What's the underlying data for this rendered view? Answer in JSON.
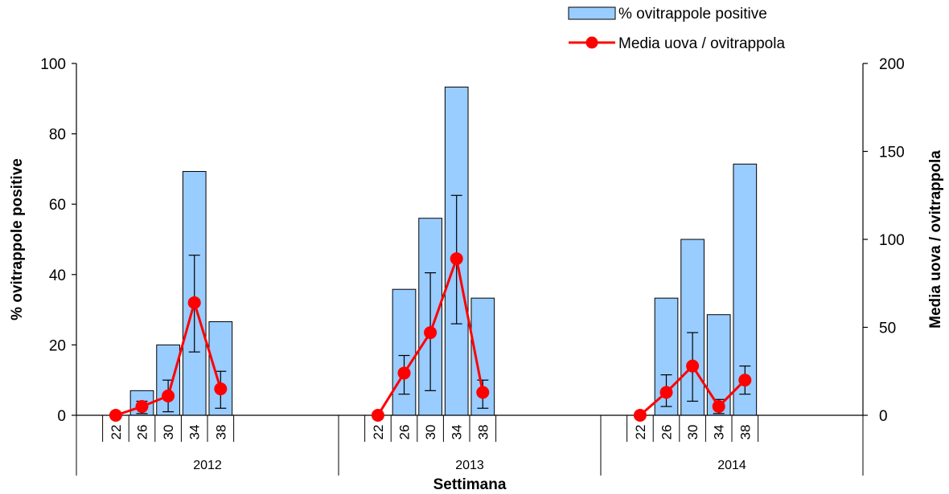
{
  "chart_data": {
    "type": "bar+line",
    "groups": [
      {
        "label": "2012",
        "weeks": [
          "22",
          "26",
          "30",
          "34",
          "38"
        ]
      },
      {
        "label": "2013",
        "weeks": [
          "22",
          "26",
          "30",
          "34",
          "38"
        ]
      },
      {
        "label": "2014",
        "weeks": [
          "22",
          "26",
          "30",
          "34",
          "38"
        ]
      }
    ],
    "xlabel": "Settimana",
    "ylabel_left": "% ovitrappole positive",
    "ylabel_right": "Media uova / ovitrappola",
    "ylim_left": [
      0,
      100
    ],
    "ylim_right": [
      0,
      200
    ],
    "yticks_left": [
      "0",
      "20",
      "40",
      "60",
      "80",
      "100"
    ],
    "yticks_right": [
      "0",
      "50",
      "100",
      "150",
      "200"
    ],
    "series": [
      {
        "name": "% ovitrappole positive",
        "kind": "bar",
        "axis": "left",
        "color": "#99CCFF",
        "values": [
          0,
          7,
          20,
          69.3,
          26.6,
          0,
          35.8,
          56,
          93.3,
          33.3,
          0,
          33.3,
          50,
          28.6,
          71.4
        ]
      },
      {
        "name": "Media uova / ovitrappola",
        "kind": "line",
        "axis": "right",
        "color": "#FF0000",
        "values": [
          0,
          5,
          11,
          64,
          15,
          0,
          24,
          47,
          89,
          13,
          0,
          13,
          28,
          5,
          20
        ],
        "err_low": [
          null,
          1,
          2,
          36,
          4,
          null,
          12,
          14,
          52,
          4,
          null,
          5,
          8,
          1,
          12
        ],
        "err_high": [
          null,
          8,
          20,
          91,
          25,
          null,
          34,
          81,
          125,
          20,
          null,
          23,
          47,
          9,
          28
        ]
      }
    ],
    "legend_position": "top-right",
    "grid": false
  }
}
